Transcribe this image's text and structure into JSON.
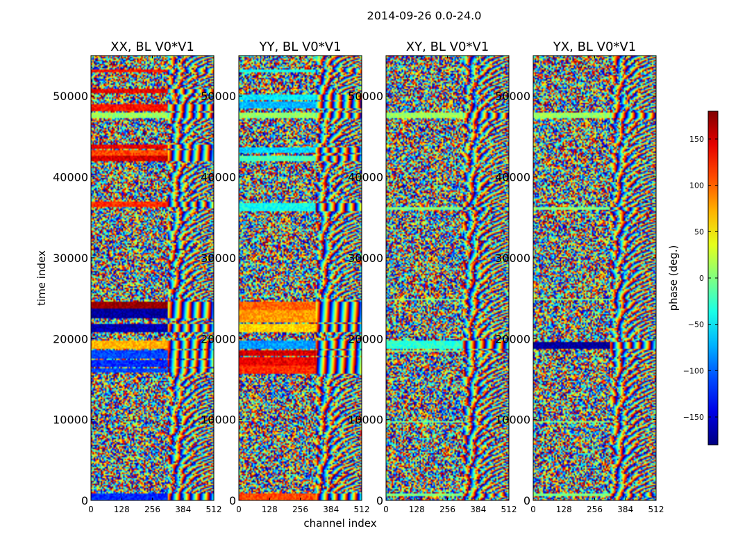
{
  "chart_data": {
    "type": "heatmap",
    "title": "2014-09-26 0.0-24.0",
    "xlabel": "channel index",
    "ylabel": "time index",
    "xlim": [
      0,
      512
    ],
    "ylim": [
      0,
      55000
    ],
    "x_ticks": [
      "0",
      "128",
      "256",
      "384",
      "512"
    ],
    "y_ticks": [
      "0",
      "10000",
      "20000",
      "30000",
      "40000",
      "50000"
    ],
    "y_tick_values": [
      0,
      10000,
      20000,
      30000,
      40000,
      50000
    ],
    "x_tick_values": [
      0,
      128,
      256,
      384,
      512
    ],
    "panels": [
      {
        "title": "XX, BL V0*V1",
        "bands": [
          {
            "y0": 0,
            "y1": 800,
            "phase": -120
          },
          {
            "y0": 15800,
            "y1": 16400,
            "phase": -110
          },
          {
            "y0": 16500,
            "y1": 17400,
            "phase": -120
          },
          {
            "y0": 17500,
            "y1": 18500,
            "phase": -110
          },
          {
            "y0": 18800,
            "y1": 19800,
            "phase": 70
          },
          {
            "y0": 20800,
            "y1": 21800,
            "phase": -160
          },
          {
            "y0": 22500,
            "y1": 23700,
            "phase": -170
          },
          {
            "y0": 23800,
            "y1": 24500,
            "phase": 175
          },
          {
            "y0": 36200,
            "y1": 36900,
            "phase": 120
          },
          {
            "y0": 41900,
            "y1": 42600,
            "phase": 150
          },
          {
            "y0": 42700,
            "y1": 43300,
            "phase": 110
          },
          {
            "y0": 43400,
            "y1": 44000,
            "phase": 140
          },
          {
            "y0": 47200,
            "y1": 48000,
            "phase": 10
          },
          {
            "y0": 48200,
            "y1": 49000,
            "phase": 130
          },
          {
            "y0": 50400,
            "y1": 50900,
            "phase": 140
          },
          {
            "y0": 52900,
            "y1": 53300,
            "phase": 130
          }
        ]
      },
      {
        "title": "YY, BL V0*V1",
        "bands": [
          {
            "y0": 0,
            "y1": 800,
            "phase": 110
          },
          {
            "y0": 15600,
            "y1": 16600,
            "phase": 120
          },
          {
            "y0": 16700,
            "y1": 17700,
            "phase": 140
          },
          {
            "y0": 17800,
            "y1": 18500,
            "phase": 150
          },
          {
            "y0": 18800,
            "y1": 19800,
            "phase": -80
          },
          {
            "y0": 20800,
            "y1": 21800,
            "phase": 60
          },
          {
            "y0": 22000,
            "y1": 23500,
            "phase": 80
          },
          {
            "y0": 23600,
            "y1": 24500,
            "phase": 100
          },
          {
            "y0": 35800,
            "y1": 36700,
            "phase": -40
          },
          {
            "y0": 42000,
            "y1": 42600,
            "phase": -20
          },
          {
            "y0": 43000,
            "y1": 43600,
            "phase": -60
          },
          {
            "y0": 47200,
            "y1": 48000,
            "phase": 10
          },
          {
            "y0": 48500,
            "y1": 49300,
            "phase": -70
          },
          {
            "y0": 49500,
            "y1": 50200,
            "phase": -50
          },
          {
            "y0": 52900,
            "y1": 53300,
            "phase": -40
          }
        ]
      },
      {
        "title": "XY, BL V0*V1",
        "bands": [
          {
            "y0": 600,
            "y1": 900,
            "phase": 0
          },
          {
            "y0": 9600,
            "y1": 9800,
            "phase": 0
          },
          {
            "y0": 18400,
            "y1": 18500,
            "phase": 0
          },
          {
            "y0": 18800,
            "y1": 19800,
            "phase": -30
          },
          {
            "y0": 24800,
            "y1": 25000,
            "phase": 0
          },
          {
            "y0": 36000,
            "y1": 36200,
            "phase": 0
          },
          {
            "y0": 47200,
            "y1": 48000,
            "phase": 10
          }
        ]
      },
      {
        "title": "YX, BL V0*V1",
        "bands": [
          {
            "y0": 600,
            "y1": 900,
            "phase": 0
          },
          {
            "y0": 9600,
            "y1": 9800,
            "phase": 0
          },
          {
            "y0": 18800,
            "y1": 19600,
            "phase": -170
          },
          {
            "y0": 24800,
            "y1": 25000,
            "phase": 0
          },
          {
            "y0": 36000,
            "y1": 36200,
            "phase": 0
          },
          {
            "y0": 47200,
            "y1": 48000,
            "phase": 10
          }
        ]
      }
    ],
    "colorbar": {
      "label": "phase (deg.)",
      "range": [
        -180,
        180
      ],
      "ticks": [
        "150",
        "100",
        "50",
        "0",
        "−50",
        "−100",
        "−150"
      ],
      "tick_values": [
        150,
        100,
        50,
        0,
        -50,
        -100,
        -150
      ],
      "colormap": "jet"
    }
  }
}
